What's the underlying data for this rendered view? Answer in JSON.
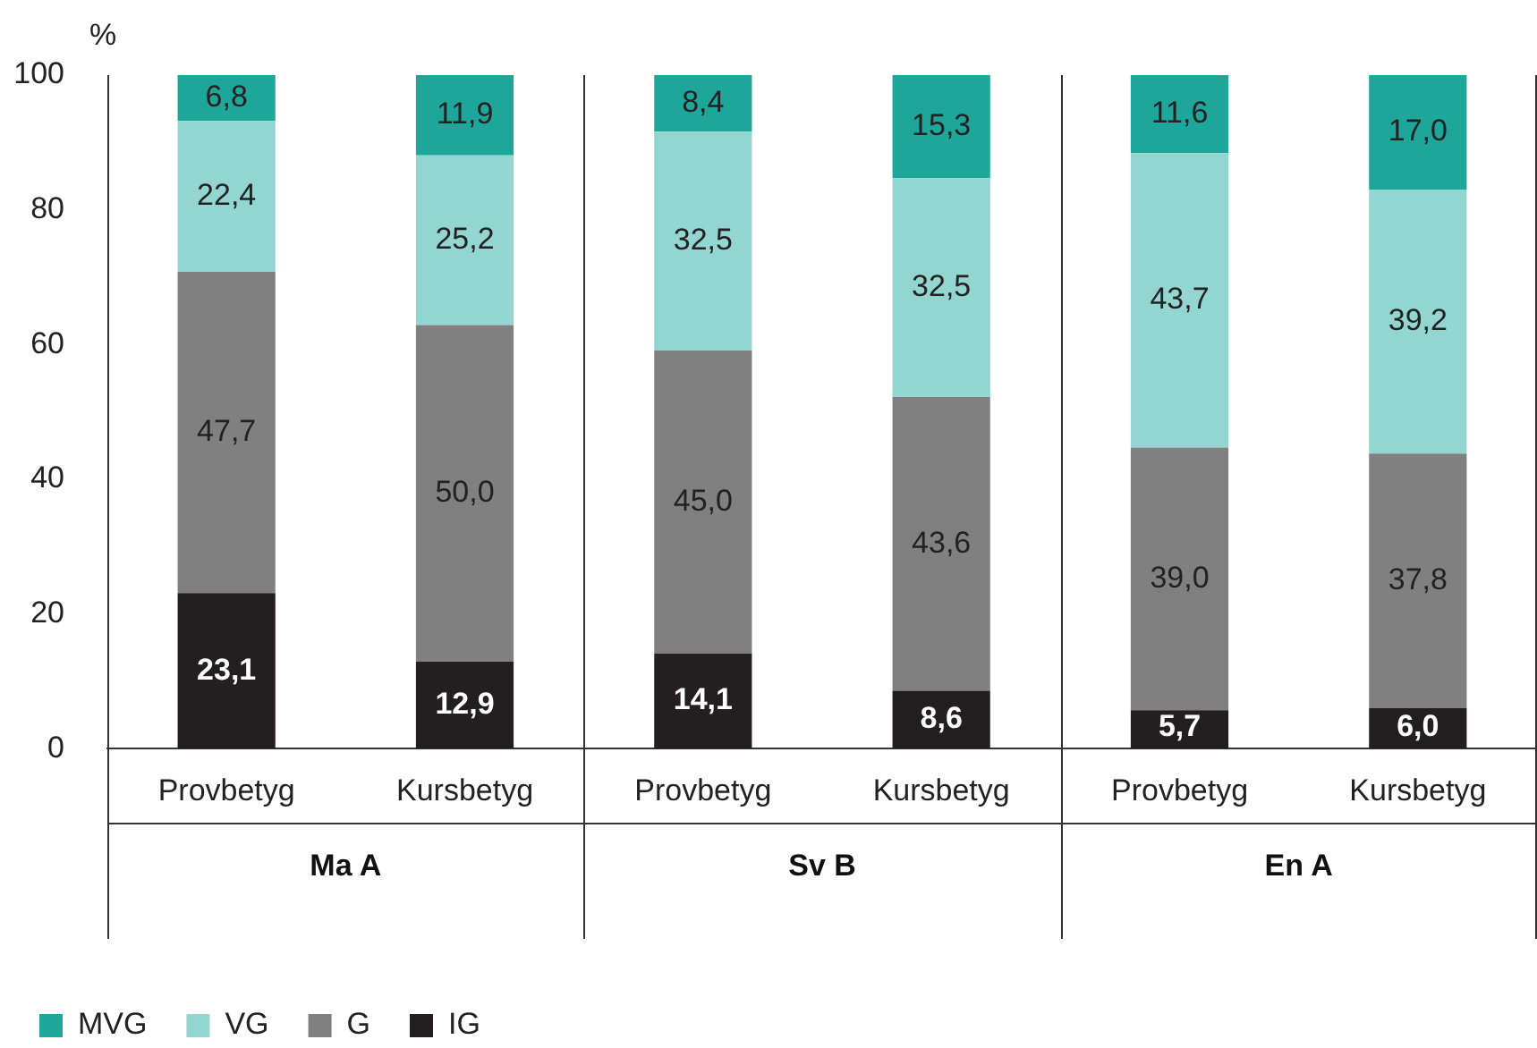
{
  "chart_data": {
    "type": "bar",
    "stacked": true,
    "ylabel": "%",
    "categories": [
      "Provbetyg",
      "Kursbetyg",
      "Provbetyg",
      "Kursbetyg",
      "Provbetyg",
      "Kursbetyg"
    ],
    "annotations": [
      "Ma A",
      "Sv B",
      "En A"
    ],
    "ylim": [
      0,
      100
    ],
    "yticks": [
      0,
      20,
      40,
      60,
      80,
      100
    ],
    "grid": false,
    "legend": "bottom",
    "series": [
      {
        "name": "IG",
        "color": "#231f20",
        "values": [
          23.1,
          12.9,
          14.1,
          8.6,
          5.7,
          6.0
        ],
        "value_labels": [
          "23,1",
          "12,9",
          "14,1",
          "8,6",
          "5,7",
          "6,0"
        ]
      },
      {
        "name": "G",
        "color": "#808080",
        "values": [
          47.7,
          50.0,
          45.0,
          43.6,
          39.0,
          37.8
        ],
        "value_labels": [
          "47,7",
          "50,0",
          "45,0",
          "43,6",
          "39,0",
          "37,8"
        ]
      },
      {
        "name": "VG",
        "color": "#93d5d0",
        "values": [
          22.4,
          25.2,
          32.5,
          32.5,
          43.7,
          39.2
        ],
        "value_labels": [
          "22,4",
          "25,2",
          "32,5",
          "32,5",
          "43,7",
          "39,2"
        ]
      },
      {
        "name": "MVG",
        "color": "#1fa69a",
        "values": [
          6.8,
          11.9,
          8.4,
          15.3,
          11.6,
          17.0
        ],
        "value_labels": [
          "6,8",
          "11,9",
          "8,4",
          "15,3",
          "11,6",
          "17,0"
        ]
      }
    ]
  }
}
